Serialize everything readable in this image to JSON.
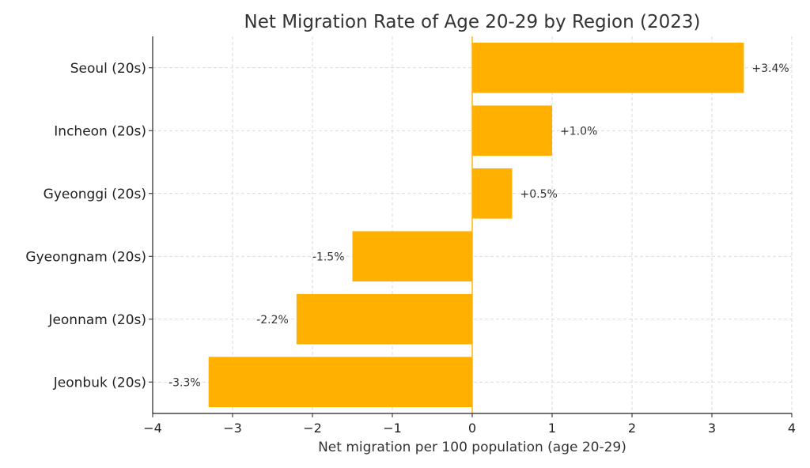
{
  "chart_data": {
    "type": "bar",
    "orientation": "horizontal",
    "title": "Net Migration Rate of Age 20-29 by Region (2023)",
    "xlabel": "Net migration per 100 population (age 20-29)",
    "ylabel": "",
    "categories": [
      "Seoul (20s)",
      "Incheon (20s)",
      "Gyeonggi (20s)",
      "Gyeongnam (20s)",
      "Jeonnam (20s)",
      "Jeonbuk (20s)"
    ],
    "values": [
      3.4,
      1.0,
      0.5,
      -1.5,
      -2.2,
      -3.3
    ],
    "value_labels": [
      "+3.4%",
      "+1.0%",
      "+0.5%",
      "-1.5%",
      "-2.2%",
      "-3.3%"
    ],
    "xlim": [
      -4,
      4
    ],
    "xticks": [
      -4,
      -3,
      -2,
      -1,
      0,
      1,
      2,
      3,
      4
    ],
    "xtick_labels": [
      "−4",
      "−3",
      "−2",
      "−1",
      "0",
      "1",
      "2",
      "3",
      "4"
    ],
    "grid": true,
    "zero_line": true,
    "colors": {
      "bar": "#FFB000",
      "zero_line": "#FFB000",
      "grid": "#d0d0d0",
      "axis": "#222222"
    }
  }
}
